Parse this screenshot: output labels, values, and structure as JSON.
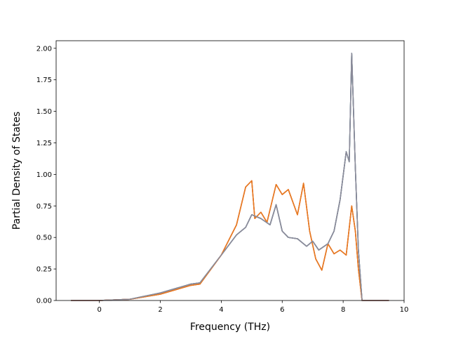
{
  "chart_data": {
    "type": "line",
    "title": "",
    "xlabel": "Frequency (THz)",
    "ylabel": "Partial Density of States",
    "xlim": [
      -1.42,
      10.0
    ],
    "ylim": [
      0.0,
      2.06
    ],
    "xticks": [
      "0",
      "2",
      "4",
      "6",
      "8",
      "10"
    ],
    "xtick_values": [
      0,
      2,
      4,
      6,
      8,
      10
    ],
    "yticks": [
      "0.00",
      "0.25",
      "0.50",
      "0.75",
      "1.00",
      "1.25",
      "1.50",
      "1.75",
      "2.00"
    ],
    "ytick_values": [
      0,
      0.25,
      0.5,
      0.75,
      1.0,
      1.25,
      1.5,
      1.75,
      2.0
    ],
    "grid": false,
    "legend": "none",
    "series": [
      {
        "color": "#1f77b4",
        "x": [
          -0.93,
          0,
          1,
          2,
          3,
          3.3,
          4,
          4.5,
          4.8,
          5,
          5.3,
          5.6,
          5.8,
          6,
          6.2,
          6.5,
          6.8,
          7,
          7.2,
          7.5,
          7.7,
          7.9,
          8.1,
          8.2,
          8.28,
          8.4,
          8.5,
          8.62,
          9.5
        ],
        "y": [
          0,
          0,
          0.01,
          0.06,
          0.13,
          0.14,
          0.36,
          0.52,
          0.58,
          0.68,
          0.65,
          0.6,
          0.76,
          0.55,
          0.5,
          0.49,
          0.43,
          0.47,
          0.4,
          0.45,
          0.55,
          0.8,
          1.18,
          1.1,
          1.96,
          1.05,
          0.4,
          0,
          0
        ]
      },
      {
        "color": "#ff7f0e",
        "x": [
          -0.93,
          0,
          1,
          2,
          3,
          3.3,
          4,
          4.5,
          4.8,
          5,
          5.1,
          5.3,
          5.5,
          5.8,
          6,
          6.2,
          6.5,
          6.7,
          6.9,
          7.1,
          7.3,
          7.5,
          7.7,
          7.9,
          8.1,
          8.28,
          8.4,
          8.5,
          8.62,
          9.5
        ],
        "y": [
          0,
          0,
          0.01,
          0.05,
          0.12,
          0.13,
          0.36,
          0.6,
          0.9,
          0.95,
          0.65,
          0.7,
          0.62,
          0.92,
          0.84,
          0.88,
          0.68,
          0.93,
          0.55,
          0.33,
          0.24,
          0.45,
          0.37,
          0.4,
          0.36,
          0.75,
          0.55,
          0.25,
          0,
          0
        ]
      },
      {
        "color": "#2ca02c",
        "x": [
          -0.93,
          0,
          1,
          2,
          3,
          3.3,
          4,
          4.5,
          4.8,
          5,
          5.3,
          5.6,
          5.8,
          6,
          6.2,
          6.5,
          6.8,
          7,
          7.2,
          7.5,
          7.7,
          7.9,
          8.1,
          8.2,
          8.28,
          8.4,
          8.5,
          8.62,
          9.5
        ],
        "y": [
          0,
          0,
          0.01,
          0.06,
          0.13,
          0.14,
          0.36,
          0.52,
          0.58,
          0.68,
          0.65,
          0.6,
          0.76,
          0.55,
          0.5,
          0.49,
          0.43,
          0.47,
          0.4,
          0.45,
          0.55,
          0.8,
          1.18,
          1.1,
          1.96,
          1.05,
          0.4,
          0,
          0
        ]
      },
      {
        "color": "#d62728",
        "x": [
          -0.93,
          0,
          1,
          2,
          3,
          3.3,
          4,
          4.5,
          4.8,
          5,
          5.1,
          5.3,
          5.5,
          5.8,
          6,
          6.2,
          6.5,
          6.7,
          6.9,
          7.1,
          7.3,
          7.5,
          7.7,
          7.9,
          8.1,
          8.28,
          8.4,
          8.5,
          8.62,
          9.5
        ],
        "y": [
          0,
          0,
          0.01,
          0.05,
          0.12,
          0.13,
          0.36,
          0.6,
          0.9,
          0.95,
          0.65,
          0.7,
          0.62,
          0.92,
          0.84,
          0.88,
          0.68,
          0.93,
          0.55,
          0.33,
          0.24,
          0.45,
          0.37,
          0.4,
          0.36,
          0.75,
          0.55,
          0.25,
          0,
          0
        ]
      },
      {
        "color": "#9467bd",
        "x": [
          -0.93,
          0,
          1,
          2,
          3,
          3.3,
          4,
          4.5,
          4.8,
          5,
          5.3,
          5.6,
          5.8,
          6,
          6.2,
          6.5,
          6.8,
          7,
          7.2,
          7.5,
          7.7,
          7.9,
          8.1,
          8.2,
          8.28,
          8.4,
          8.5,
          8.62,
          9.5
        ],
        "y": [
          0,
          0,
          0.01,
          0.06,
          0.13,
          0.14,
          0.36,
          0.52,
          0.58,
          0.68,
          0.65,
          0.6,
          0.76,
          0.55,
          0.5,
          0.49,
          0.43,
          0.47,
          0.4,
          0.45,
          0.55,
          0.8,
          1.18,
          1.1,
          1.96,
          1.05,
          0.4,
          0,
          0
        ]
      },
      {
        "color": "#e67e22",
        "x": [
          -0.93,
          0,
          1,
          2,
          3,
          3.3,
          4,
          4.5,
          4.8,
          5,
          5.1,
          5.3,
          5.5,
          5.8,
          6,
          6.2,
          6.5,
          6.7,
          6.9,
          7.1,
          7.3,
          7.5,
          7.7,
          7.9,
          8.1,
          8.28,
          8.4,
          8.5,
          8.62,
          9.5
        ],
        "y": [
          0,
          0,
          0.01,
          0.05,
          0.12,
          0.13,
          0.36,
          0.6,
          0.9,
          0.95,
          0.65,
          0.7,
          0.62,
          0.92,
          0.84,
          0.88,
          0.68,
          0.93,
          0.55,
          0.33,
          0.24,
          0.45,
          0.37,
          0.4,
          0.36,
          0.75,
          0.55,
          0.25,
          0,
          0
        ]
      },
      {
        "color": "#8c8c99",
        "x": [
          -0.93,
          0,
          1,
          2,
          3,
          3.3,
          4,
          4.5,
          4.8,
          5,
          5.3,
          5.6,
          5.8,
          6,
          6.2,
          6.5,
          6.8,
          7,
          7.2,
          7.5,
          7.7,
          7.9,
          8.1,
          8.2,
          8.28,
          8.4,
          8.5,
          8.62,
          9.5
        ],
        "y": [
          0,
          0,
          0.01,
          0.06,
          0.13,
          0.14,
          0.36,
          0.52,
          0.58,
          0.68,
          0.65,
          0.6,
          0.76,
          0.55,
          0.5,
          0.49,
          0.43,
          0.47,
          0.4,
          0.45,
          0.55,
          0.8,
          1.18,
          1.1,
          1.96,
          1.05,
          0.4,
          0,
          0
        ]
      }
    ]
  }
}
